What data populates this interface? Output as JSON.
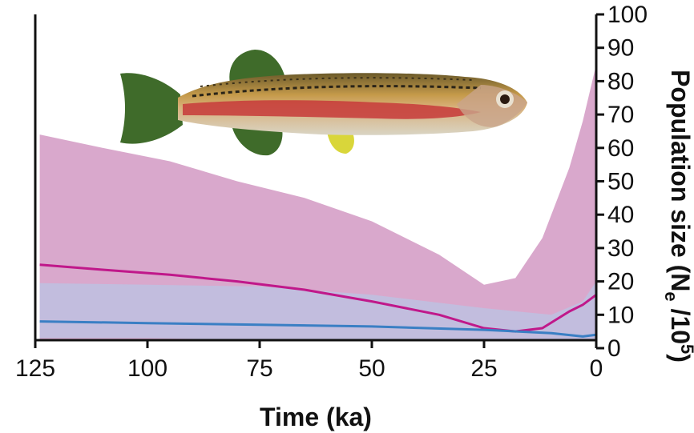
{
  "chart_data": {
    "type": "area",
    "xlabel": "Time (ka)",
    "ylabel": "Population size (N",
    "ylabel_sub": "e",
    "ylabel_mid": " /10",
    "ylabel_sup": "5",
    "ylabel_close": ")",
    "xlim": [
      125,
      0
    ],
    "ylim": [
      -5,
      100
    ],
    "x_ticks": [
      125,
      100,
      75,
      50,
      25,
      0
    ],
    "y_ticks": [
      0,
      10,
      20,
      30,
      40,
      50,
      60,
      70,
      80,
      90,
      100
    ],
    "x_axis_reversed": true,
    "y_axis_side": "right",
    "grid": false,
    "legend": "none",
    "series": [
      {
        "color": "#c0188a",
        "band_color": "#d9a8cc",
        "x": [
          124,
          110,
          95,
          80,
          65,
          50,
          35,
          25,
          18,
          12,
          6,
          3,
          0
        ],
        "mean": [
          25,
          23.5,
          22,
          20,
          17.5,
          14,
          10,
          6,
          5,
          6,
          11,
          13,
          16
        ],
        "lower": [
          2,
          2,
          2,
          1.5,
          1.5,
          1.5,
          1,
          1,
          1,
          1,
          1,
          1,
          1
        ],
        "upper": [
          64,
          60,
          56,
          50,
          45,
          38,
          28,
          19,
          21,
          33,
          54,
          68,
          85
        ]
      },
      {
        "color": "#3a7fc4",
        "band_color": "#b9c4e4",
        "x": [
          124,
          100,
          75,
          50,
          25,
          10,
          3,
          0
        ],
        "mean": [
          8,
          7.5,
          7,
          6.5,
          5.5,
          4.5,
          3.5,
          4
        ],
        "lower": [
          3,
          3,
          2.5,
          2,
          1.5,
          1,
          0.5,
          0.5
        ],
        "upper": [
          19.5,
          19,
          18.5,
          16,
          12,
          10,
          14,
          20
        ]
      }
    ]
  },
  "inset_image": {
    "subject": "fish-photo",
    "colors": {
      "fins": "#3f6b2a",
      "body": "#b8863a",
      "stripe": "#c73a3a",
      "belly": "#d9d4b8",
      "pelvic": "#d9d63a"
    }
  }
}
